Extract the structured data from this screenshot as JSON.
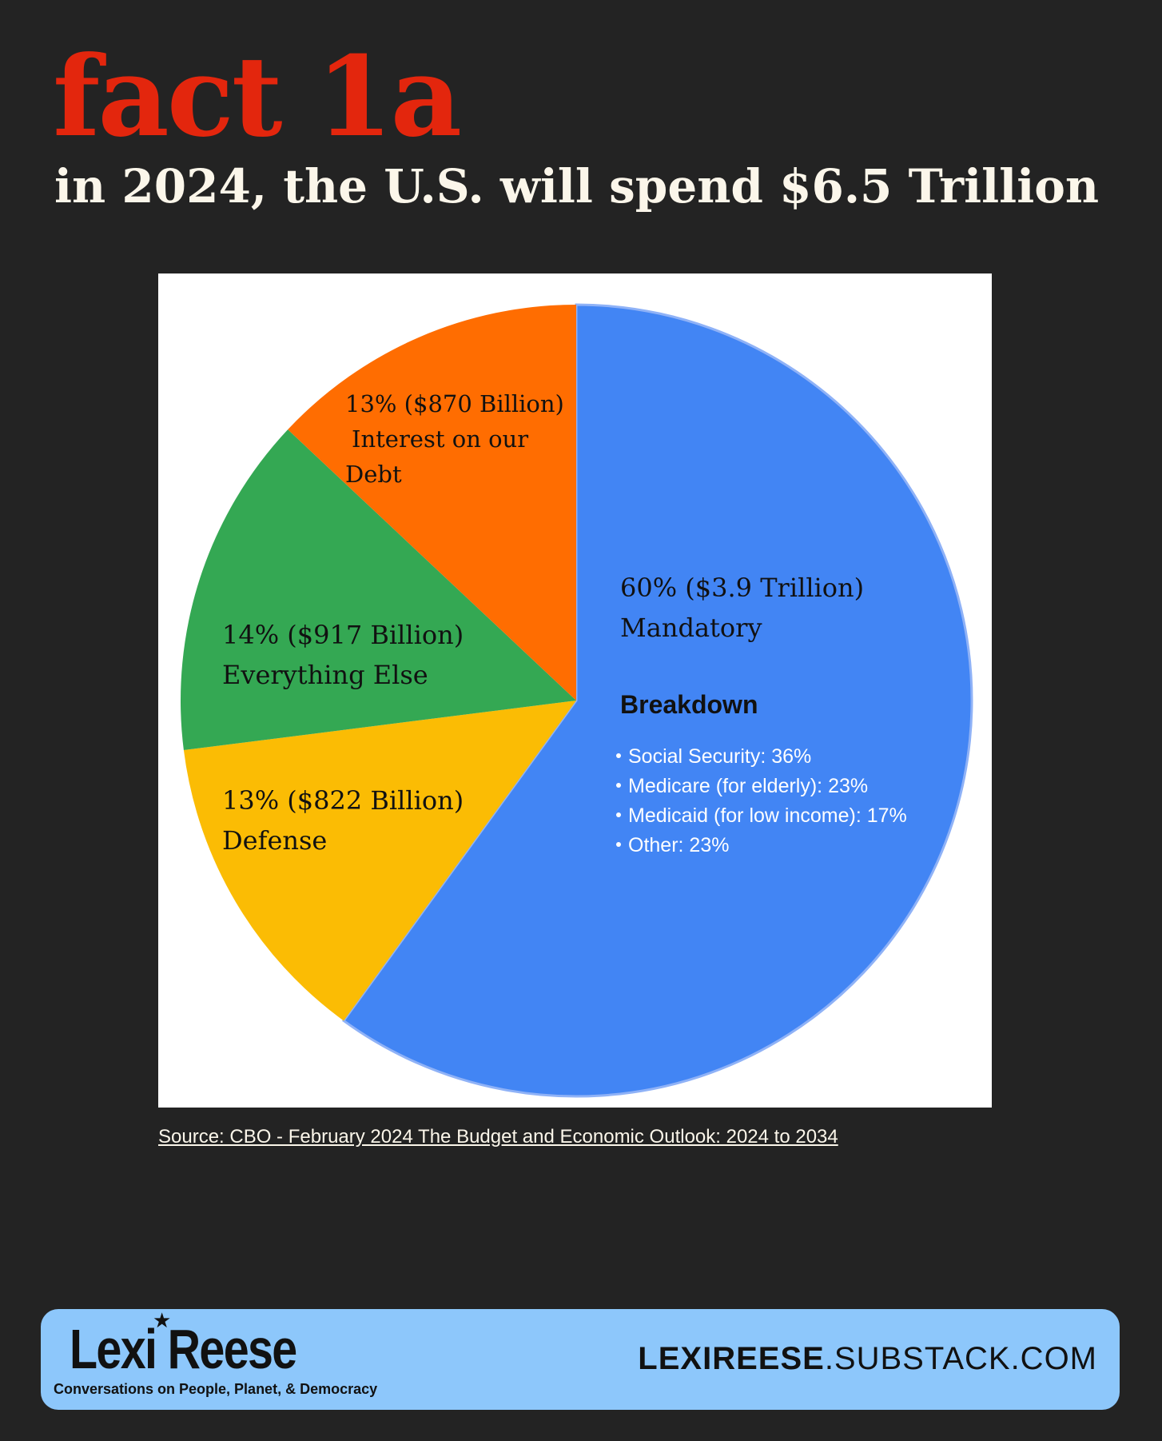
{
  "header": {
    "title": "fact 1a",
    "subtitle": "in 2024, the U.S. will spend $6.5 Trillion"
  },
  "colors": {
    "background": "#232323",
    "title": "#e3260d",
    "mandatory": "#4285f4",
    "interest": "#ff6d01",
    "everything_else": "#34a853",
    "defense": "#fbbc04",
    "footer": "#8dc7fb"
  },
  "chart_data": {
    "type": "pie",
    "total": "$6.5 Trillion",
    "slices": [
      {
        "name": "Mandatory",
        "percent": 60,
        "amount": "$3.9 Trillion",
        "line1": "60% ($3.9 Trillion)",
        "line2": "Mandatory",
        "line3": "",
        "color": "#4285f4"
      },
      {
        "name": "Defense",
        "percent": 13,
        "amount": "$822 Billion",
        "line1": "13% ($822 Billion)",
        "line2": "Defense",
        "line3": "",
        "color": "#fbbc04"
      },
      {
        "name": "Everything Else",
        "percent": 14,
        "amount": "$917 Billion",
        "line1": "14% ($917 Billion)",
        "line2": "Everything Else",
        "line3": "",
        "color": "#34a853"
      },
      {
        "name": "Interest on our Debt",
        "percent": 13,
        "amount": "$870 Billion",
        "line1": "13% ($870 Billion)",
        "line2": "Interest on our",
        "line3": "Debt",
        "color": "#ff6d01"
      }
    ],
    "breakdown": {
      "title": "Breakdown",
      "items": [
        {
          "label": "Social Security",
          "percent": 36,
          "text": "Social Security: 36%"
        },
        {
          "label": "Medicare (for elderly)",
          "percent": 23,
          "text": "Medicare (for elderly): 23%"
        },
        {
          "label": "Medicaid (for low income)",
          "percent": 17,
          "text": "Medicaid (for low income): 17%"
        },
        {
          "label": "Other",
          "percent": 23,
          "text": "Other: 23%"
        }
      ]
    }
  },
  "source": {
    "text": "Source: CBO - February 2024 The Budget and Economic Outlook: 2024 to 2034"
  },
  "footer": {
    "brand": "Lexi Reese",
    "tagline": "Conversations on People, Planet, & Democracy",
    "site_bold": "LEXIREESE",
    "site_rest": ".SUBSTACK.COM"
  }
}
